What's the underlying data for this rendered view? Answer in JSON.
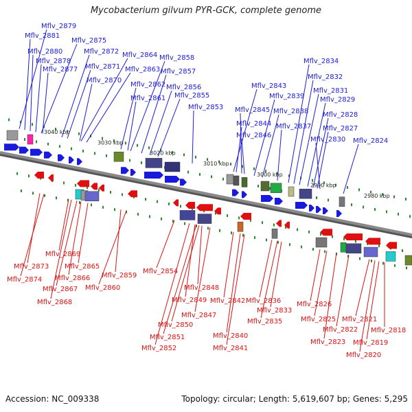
{
  "title": "Mycobacterium gilvum PYR-GCK, complete genome",
  "footer": {
    "accession": "Accession: NC_009338",
    "summary": "Topology: circular; Length: 5,619,607 bp; Genes: 5,295"
  },
  "colors": {
    "top_strand": "#1a1adb",
    "bottom_strand": "#dd1111",
    "axis": "#8a8a8a",
    "tick": "#2a8a2a"
  },
  "kbp_markers": [
    "3040 kbp",
    "3030 kbp",
    "3020 kbp",
    "3010 kbp",
    "3000 kbp",
    "2990 kbp",
    "2980 kbp"
  ],
  "top_genes": [
    "Mflv_2879",
    "Mflv_2881",
    "Mflv_2875",
    "Mflv_2880",
    "Mflv_2872",
    "Mflv_2878",
    "Mflv_2864",
    "Mflv_2858",
    "Mflv_2877",
    "Mflv_2871",
    "Mflv_2863",
    "Mflv_2857",
    "Mflv_2870",
    "Mflv_2862",
    "Mflv_2856",
    "Mflv_2861",
    "Mflv_2855",
    "Mflv_2853",
    "Mflv_2834",
    "Mflv_2832",
    "Mflv_2843",
    "Mflv_2831",
    "Mflv_2839",
    "Mflv_2829",
    "Mflv_2845",
    "Mflv_2838",
    "Mflv_2828",
    "Mflv_2844",
    "Mflv_2837",
    "Mflv_2827",
    "Mflv_2846",
    "Mflv_2830",
    "Mflv_2824"
  ],
  "bottom_genes": [
    "Mflv_2869",
    "Mflv_2873",
    "Mflv_2865",
    "Mflv_2874",
    "Mflv_2866",
    "Mflv_2859",
    "Mflv_2867",
    "Mflv_2860",
    "Mflv_2868",
    "Mflv_2854",
    "Mflv_2848",
    "Mflv_2849",
    "Mflv_2842",
    "Mflv_2836",
    "Mflv_2847",
    "Mflv_2833",
    "Mflv_2850",
    "Mflv_2835",
    "Mflv_2851",
    "Mflv_2840",
    "Mflv_2852",
    "Mflv_2841",
    "Mflv_2826",
    "Mflv_2825",
    "Mflv_2821",
    "Mflv_2822",
    "Mflv_2818",
    "Mflv_2823",
    "Mflv_2819",
    "Mflv_2820"
  ]
}
